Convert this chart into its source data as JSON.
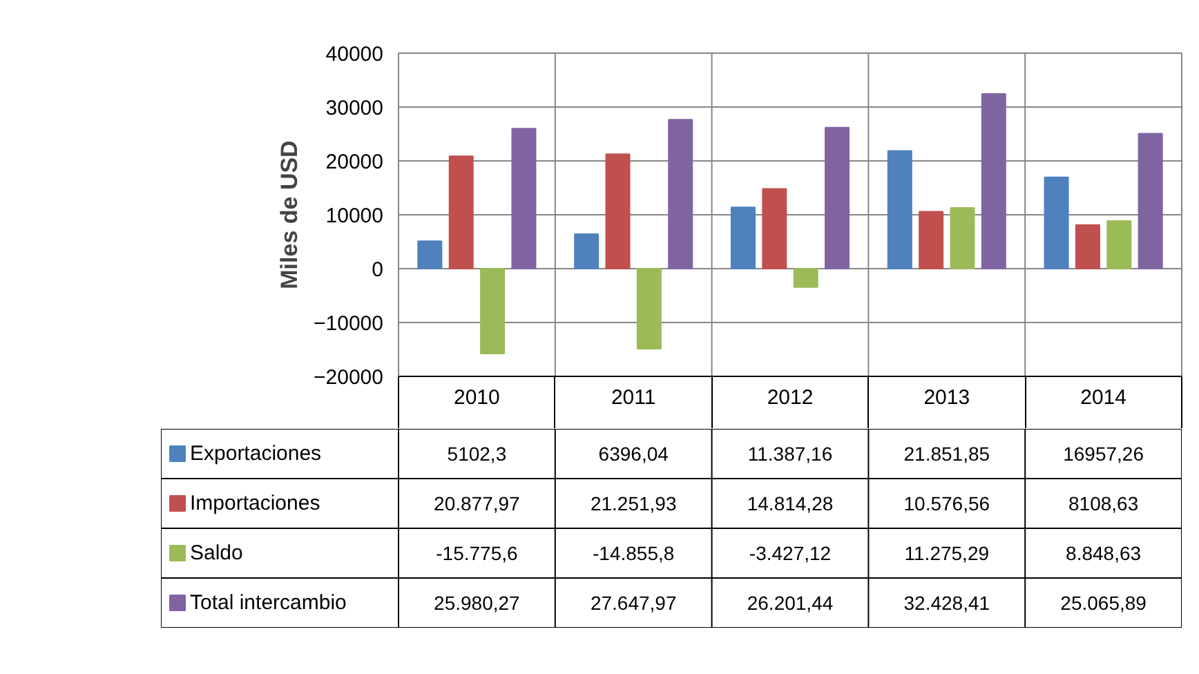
{
  "chart_data": {
    "type": "bar",
    "ylabel": "Miles de USD",
    "categories": [
      "2010",
      "2011",
      "2012",
      "2013",
      "2014"
    ],
    "series": [
      {
        "name": "Exportaciones",
        "color": "#4f81bd",
        "values": [
          5102.3,
          6396.04,
          11387.16,
          21851.85,
          16957.26
        ],
        "value_labels": [
          "5102,3",
          "6396,04",
          "11.387,16",
          "21.851,85",
          "16957,26"
        ]
      },
      {
        "name": "Importaciones",
        "color": "#c0504d",
        "values": [
          20877.97,
          21251.93,
          14814.28,
          10576.56,
          8108.63
        ],
        "value_labels": [
          "20.877,97",
          "21.251,93",
          "14.814,28",
          "10.576,56",
          "8108,63"
        ]
      },
      {
        "name": "Saldo",
        "color": "#9bbb59",
        "values": [
          -15775.6,
          -14855.8,
          -3427.12,
          11275.29,
          8848.63
        ],
        "value_labels": [
          "-15.775,6",
          "-14.855,8",
          "-3.427,12",
          "11.275,29",
          "8.848,63"
        ]
      },
      {
        "name": "Total intercambio",
        "color": "#8064a2",
        "values": [
          25980.27,
          27647.97,
          26201.44,
          32428.41,
          25065.89
        ],
        "value_labels": [
          "25.980,27",
          "27.647,97",
          "26.201,44",
          "32.428,41",
          "25.065,89"
        ]
      }
    ],
    "ylim": [
      -20000,
      40000
    ],
    "yticks": [
      -20000,
      -10000,
      0,
      10000,
      20000,
      30000,
      40000
    ],
    "grid": "y",
    "legend": "bottom"
  }
}
